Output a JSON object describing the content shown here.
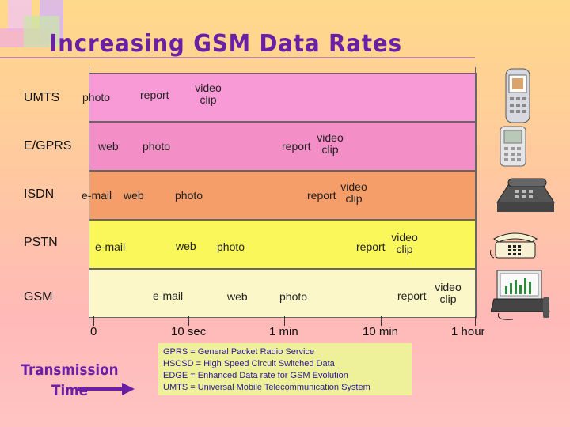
{
  "title": "Increasing GSM Data Rates",
  "rows": [
    {
      "label": "UMTS",
      "items": [
        "photo",
        "report",
        "video clip"
      ]
    },
    {
      "label": "E/GPRS",
      "items": [
        "web",
        "photo",
        "report",
        "video clip"
      ]
    },
    {
      "label": "ISDN",
      "items": [
        "e-mail",
        "web",
        "photo",
        "report",
        "video clip"
      ]
    },
    {
      "label": "PSTN",
      "items": [
        "e-mail",
        "web",
        "photo",
        "report",
        "video clip"
      ]
    },
    {
      "label": "GSM",
      "items": [
        "e-mail",
        "web",
        "photo",
        "report",
        "video clip"
      ]
    }
  ],
  "axis": {
    "ticks": [
      "0",
      "10 sec",
      "1 min",
      "10 min",
      "1 hour"
    ]
  },
  "bottom_label": {
    "line1": "Transmission",
    "line2": "Time"
  },
  "legend": [
    {
      "abbr": "GPRS",
      "text": "General Packet Radio Service"
    },
    {
      "abbr": "HSCSD",
      "text": "High Speed Circuit Switched Data"
    },
    {
      "abbr": "EDGE",
      "text": "Enhanced Data rate for GSM Evolution"
    },
    {
      "abbr": "UMTS",
      "text": "Universal Mobile Telecommunication System"
    }
  ],
  "colors": {
    "umts": "#f79ad6",
    "egprs": "#f48ec7",
    "isdn": "#f59e6a",
    "pstn": "#f9f75a",
    "gsm": "#fbf7c9"
  }
}
